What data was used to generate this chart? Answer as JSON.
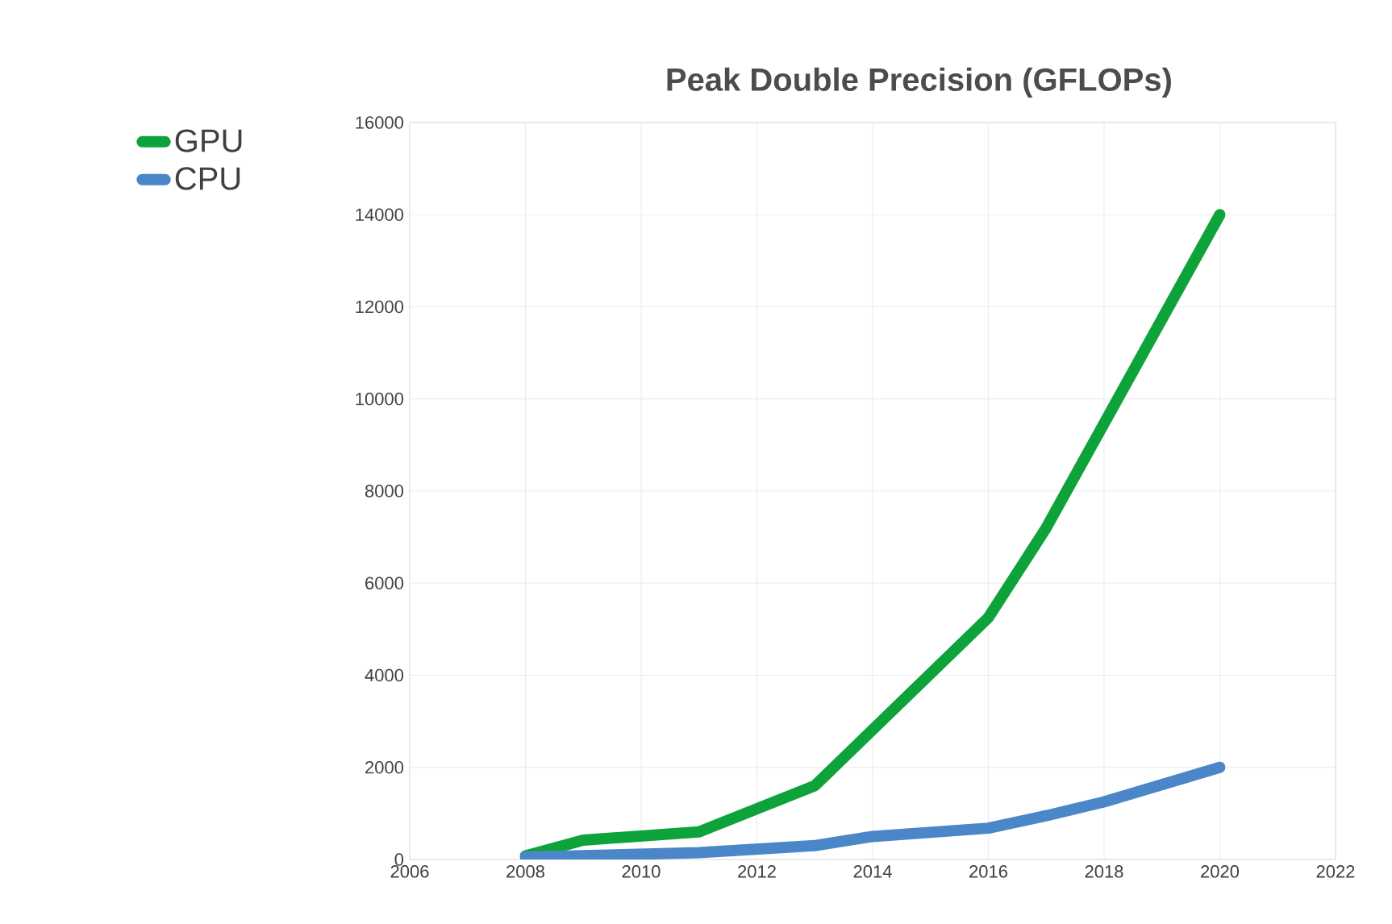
{
  "chart_data": {
    "type": "line",
    "title": "Peak Double Precision (GFLOPs)",
    "xlim": [
      2006,
      2022
    ],
    "xticks": [
      2006,
      2008,
      2010,
      2012,
      2014,
      2016,
      2018,
      2020,
      2022
    ],
    "ylim": [
      0,
      16000
    ],
    "yticks": [
      0,
      2000,
      4000,
      6000,
      8000,
      10000,
      12000,
      14000,
      16000
    ],
    "grid": true,
    "legend": "left",
    "marker": "none",
    "line_style": "solid",
    "series": [
      {
        "name": "GPU",
        "color": "#0ea33a",
        "x": [
          2008,
          2009,
          2011,
          2013,
          2016,
          2017,
          2020
        ],
        "values": [
          80,
          420,
          600,
          1600,
          5250,
          7200,
          14000
        ]
      },
      {
        "name": "CPU",
        "color": "#4a86c8",
        "x": [
          2008,
          2011,
          2013,
          2014,
          2016,
          2017,
          2018,
          2020
        ],
        "values": [
          50,
          150,
          300,
          500,
          680,
          950,
          1250,
          2000
        ]
      }
    ]
  }
}
